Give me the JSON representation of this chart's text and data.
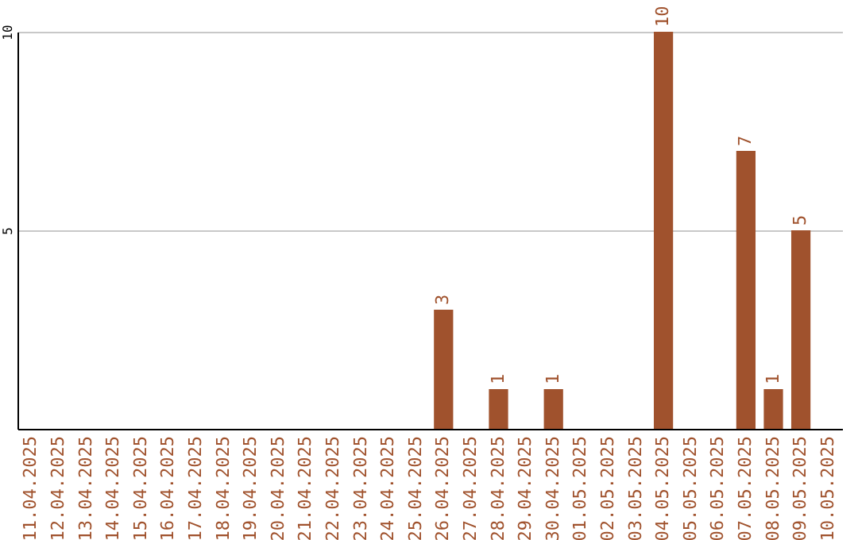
{
  "chart_data": {
    "type": "bar",
    "categories": [
      "11.04.2025",
      "12.04.2025",
      "13.04.2025",
      "14.04.2025",
      "15.04.2025",
      "16.04.2025",
      "17.04.2025",
      "18.04.2025",
      "19.04.2025",
      "20.04.2025",
      "21.04.2025",
      "22.04.2025",
      "23.04.2025",
      "24.04.2025",
      "25.04.2025",
      "26.04.2025",
      "27.04.2025",
      "28.04.2025",
      "29.04.2025",
      "30.04.2025",
      "01.05.2025",
      "02.05.2025",
      "03.05.2025",
      "04.05.2025",
      "05.05.2025",
      "06.05.2025",
      "07.05.2025",
      "08.05.2025",
      "09.05.2025",
      "10.05.2025"
    ],
    "values": [
      0,
      0,
      0,
      0,
      0,
      0,
      0,
      0,
      0,
      0,
      0,
      0,
      0,
      0,
      0,
      3,
      0,
      1,
      0,
      1,
      0,
      0,
      0,
      10,
      0,
      0,
      7,
      1,
      5,
      0
    ],
    "value_labels": [
      null,
      null,
      null,
      null,
      null,
      null,
      null,
      null,
      null,
      null,
      null,
      null,
      null,
      null,
      null,
      "3",
      null,
      "1",
      null,
      "1",
      null,
      null,
      null,
      "10",
      null,
      null,
      "7",
      "1",
      "5",
      null
    ],
    "color": "#a0522d",
    "ylim": [
      0,
      10
    ],
    "yticks": [
      5,
      10
    ],
    "grid": "y"
  }
}
